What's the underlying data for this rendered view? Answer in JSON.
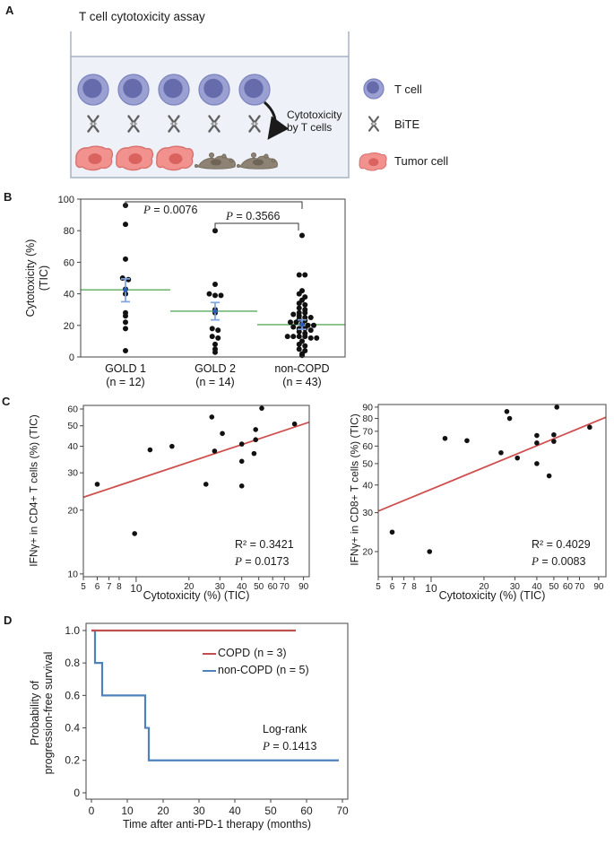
{
  "figure": {
    "background": "#ffffff",
    "panel_labels": {
      "a": "A",
      "b": "B",
      "c": "C",
      "d": "D"
    }
  },
  "panel_a": {
    "title": "T cell cytotoxicity assay",
    "arrow_caption_line1": "Cytotoxicity",
    "arrow_caption_line2": "by T cells",
    "legend": [
      {
        "icon": "t-cell-icon",
        "label": "T cell"
      },
      {
        "icon": "bite-antibody-icon",
        "label": "BiTE"
      },
      {
        "icon": "tumor-cell-icon",
        "label": "Tumor cell"
      }
    ],
    "colors": {
      "tcell_body": "#9aa0d2",
      "tcell_border": "#7b82bd",
      "tcell_nucleus": "#666cab",
      "bite": "#5f5f5f",
      "tumor_body": "#f2928f",
      "tumor_border": "#d8706d",
      "tumor_nucleus": "#da625f",
      "debris": "#8d8274",
      "debris_dark": "#6e6557",
      "well_fill": "#eef2f8",
      "well_border": "#a8b2c4",
      "arrow": "#1a1a1a"
    }
  },
  "chart_data": [
    {
      "id": "b",
      "type": "scatter",
      "subtype": "grouped-dotplot",
      "ylabel_line1": "Cytotoxicity (%)",
      "ylabel_line2": "(TIC)",
      "ylim": [
        0,
        100
      ],
      "yticks": [
        0,
        20,
        40,
        60,
        80,
        100
      ],
      "point_color": "#111111",
      "mean_color": "#74b874",
      "error_color": "#7da3e0",
      "error_center_color": "#2f5bbf",
      "groups": [
        {
          "label": "GOLD 1",
          "n": "(n = 12)",
          "mean": 42.5,
          "err_low": 35,
          "err_high": 49.5,
          "values": [
            96,
            84,
            62,
            50,
            49,
            43,
            40,
            28,
            26,
            22,
            18,
            4
          ]
        },
        {
          "label": "GOLD 2",
          "n": "(n = 14)",
          "mean": 29,
          "err_low": 23.5,
          "err_high": 34.5,
          "values": [
            80,
            46,
            40,
            39,
            39,
            30,
            28,
            18,
            17,
            13,
            12,
            8,
            5,
            3
          ]
        },
        {
          "label": "non-COPD",
          "n": "(n = 43)",
          "mean": 20.5,
          "err_low": 17.5,
          "err_high": 23.5,
          "values": [
            77,
            52,
            52,
            42,
            40,
            38,
            36,
            34,
            33,
            31,
            30,
            28,
            28,
            27,
            26,
            25,
            25,
            24,
            23,
            22,
            22,
            21,
            20,
            20,
            19,
            18,
            18,
            17,
            16,
            15,
            13,
            13,
            13,
            13,
            12,
            12,
            10,
            8,
            7,
            5,
            4,
            2,
            1
          ]
        }
      ],
      "comparisons": [
        {
          "groups": "GOLD 1 vs non-COPD",
          "p_var": "P",
          "p_rest": " = 0.0076"
        },
        {
          "groups": "GOLD 2 vs non-COPD",
          "p_var": "P",
          "p_rest": " = 0.3566"
        }
      ]
    },
    {
      "id": "c1",
      "type": "scatter",
      "xscale": "log",
      "yscale": "log",
      "xlabel": "Cytotoxicity (%) (TIC)",
      "ylabel": "IFNγ+ in CD4+ T cells (%) (TIC)",
      "xlim": [
        5,
        97
      ],
      "ylim": [
        9.7,
        62.4
      ],
      "xticks": [
        {
          "v": 5
        },
        {
          "v": 6
        },
        {
          "v": 7
        },
        {
          "v": 8
        },
        {
          "v": 10,
          "major": true
        },
        {
          "v": 20
        },
        {
          "v": 30
        },
        {
          "v": 40
        },
        {
          "v": 50
        },
        {
          "v": 60
        },
        {
          "v": 70
        },
        {
          "v": 90
        }
      ],
      "yticks": [
        10,
        20,
        30,
        40,
        50,
        60
      ],
      "points": [
        [
          6,
          26.5
        ],
        [
          9.8,
          15.5
        ],
        [
          12,
          38.5
        ],
        [
          16,
          40
        ],
        [
          25,
          26.5
        ],
        [
          27,
          55
        ],
        [
          28,
          38
        ],
        [
          31,
          46
        ],
        [
          40,
          41
        ],
        [
          40,
          34
        ],
        [
          40,
          26
        ],
        [
          47,
          37
        ],
        [
          48,
          48
        ],
        [
          48,
          43
        ],
        [
          52,
          60.5
        ],
        [
          80,
          51
        ]
      ],
      "fit": {
        "x1": 5,
        "y1": 23,
        "x2": 97,
        "y2": 52
      },
      "line_color": "#d05050",
      "point_color": "#111111",
      "r2_text": "R² = 0.3421",
      "p_var": "P",
      "p_rest": " = 0.0173"
    },
    {
      "id": "c2",
      "type": "scatter",
      "xscale": "log",
      "yscale": "log",
      "xlabel": "Cytotoxicity (%) (TIC)",
      "ylabel": "IFNγ+ in CD8+ T cells (%) (TIC)",
      "xlim": [
        5,
        99
      ],
      "ylim": [
        15.4,
        92.5
      ],
      "xticks": [
        {
          "v": 5
        },
        {
          "v": 6
        },
        {
          "v": 7
        },
        {
          "v": 8
        },
        {
          "v": 10,
          "major": true
        },
        {
          "v": 20
        },
        {
          "v": 30
        },
        {
          "v": 40
        },
        {
          "v": 50
        },
        {
          "v": 60
        },
        {
          "v": 70
        },
        {
          "v": 90
        }
      ],
      "yticks": [
        20,
        30,
        40,
        50,
        60,
        70,
        80,
        90
      ],
      "points": [
        [
          6,
          24.5
        ],
        [
          9.8,
          20
        ],
        [
          12,
          65
        ],
        [
          16,
          63.5
        ],
        [
          25,
          56
        ],
        [
          27,
          86
        ],
        [
          28,
          80
        ],
        [
          31,
          53
        ],
        [
          40,
          67
        ],
        [
          40,
          62
        ],
        [
          40,
          50
        ],
        [
          47,
          44
        ],
        [
          50,
          67.5
        ],
        [
          50,
          63
        ],
        [
          52,
          90
        ],
        [
          80,
          73
        ]
      ],
      "fit": {
        "x1": 5,
        "y1": 30.5,
        "x2": 99,
        "y2": 81
      },
      "line_color": "#d05050",
      "point_color": "#111111",
      "r2_text": "R² = 0.4029",
      "p_var": "P",
      "p_rest": " = 0.0083"
    },
    {
      "id": "d",
      "type": "line",
      "subtype": "kaplan-meier",
      "xlabel": "Time after anti-PD-1 therapy (months)",
      "ylabel_line1": "Probability of",
      "ylabel_line2": "progression-free survival",
      "xlim": [
        -1.5,
        71.5
      ],
      "ylim": [
        -0.039,
        1.044
      ],
      "xticks": [
        0,
        10,
        20,
        30,
        40,
        50,
        60,
        70
      ],
      "yticks": [
        {
          "v": 0,
          "t": "0"
        },
        {
          "v": 0.2,
          "t": "0.2"
        },
        {
          "v": 0.4,
          "t": "0.4"
        },
        {
          "v": 0.6,
          "t": "0.6"
        },
        {
          "v": 0.8,
          "t": "0.8"
        },
        {
          "v": 1,
          "t": "1.0"
        }
      ],
      "series": [
        {
          "name": "COPD",
          "n": "(n = 3)",
          "color": "#c0504d",
          "points": [
            [
              0,
              1
            ],
            [
              57,
              1
            ]
          ]
        },
        {
          "name": "non-COPD",
          "n": "(n = 5)",
          "color": "#4f81bd",
          "points": [
            [
              0,
              1
            ],
            [
              1,
              1
            ],
            [
              1,
              0.8
            ],
            [
              3,
              0.8
            ],
            [
              3,
              0.6
            ],
            [
              15,
              0.6
            ],
            [
              15,
              0.4
            ],
            [
              16,
              0.4
            ],
            [
              16,
              0.2
            ],
            [
              69,
              0.2
            ]
          ]
        }
      ],
      "annotation_line1": "Log-rank",
      "p_var": "P",
      "p_rest": " = 0.1413"
    }
  ]
}
